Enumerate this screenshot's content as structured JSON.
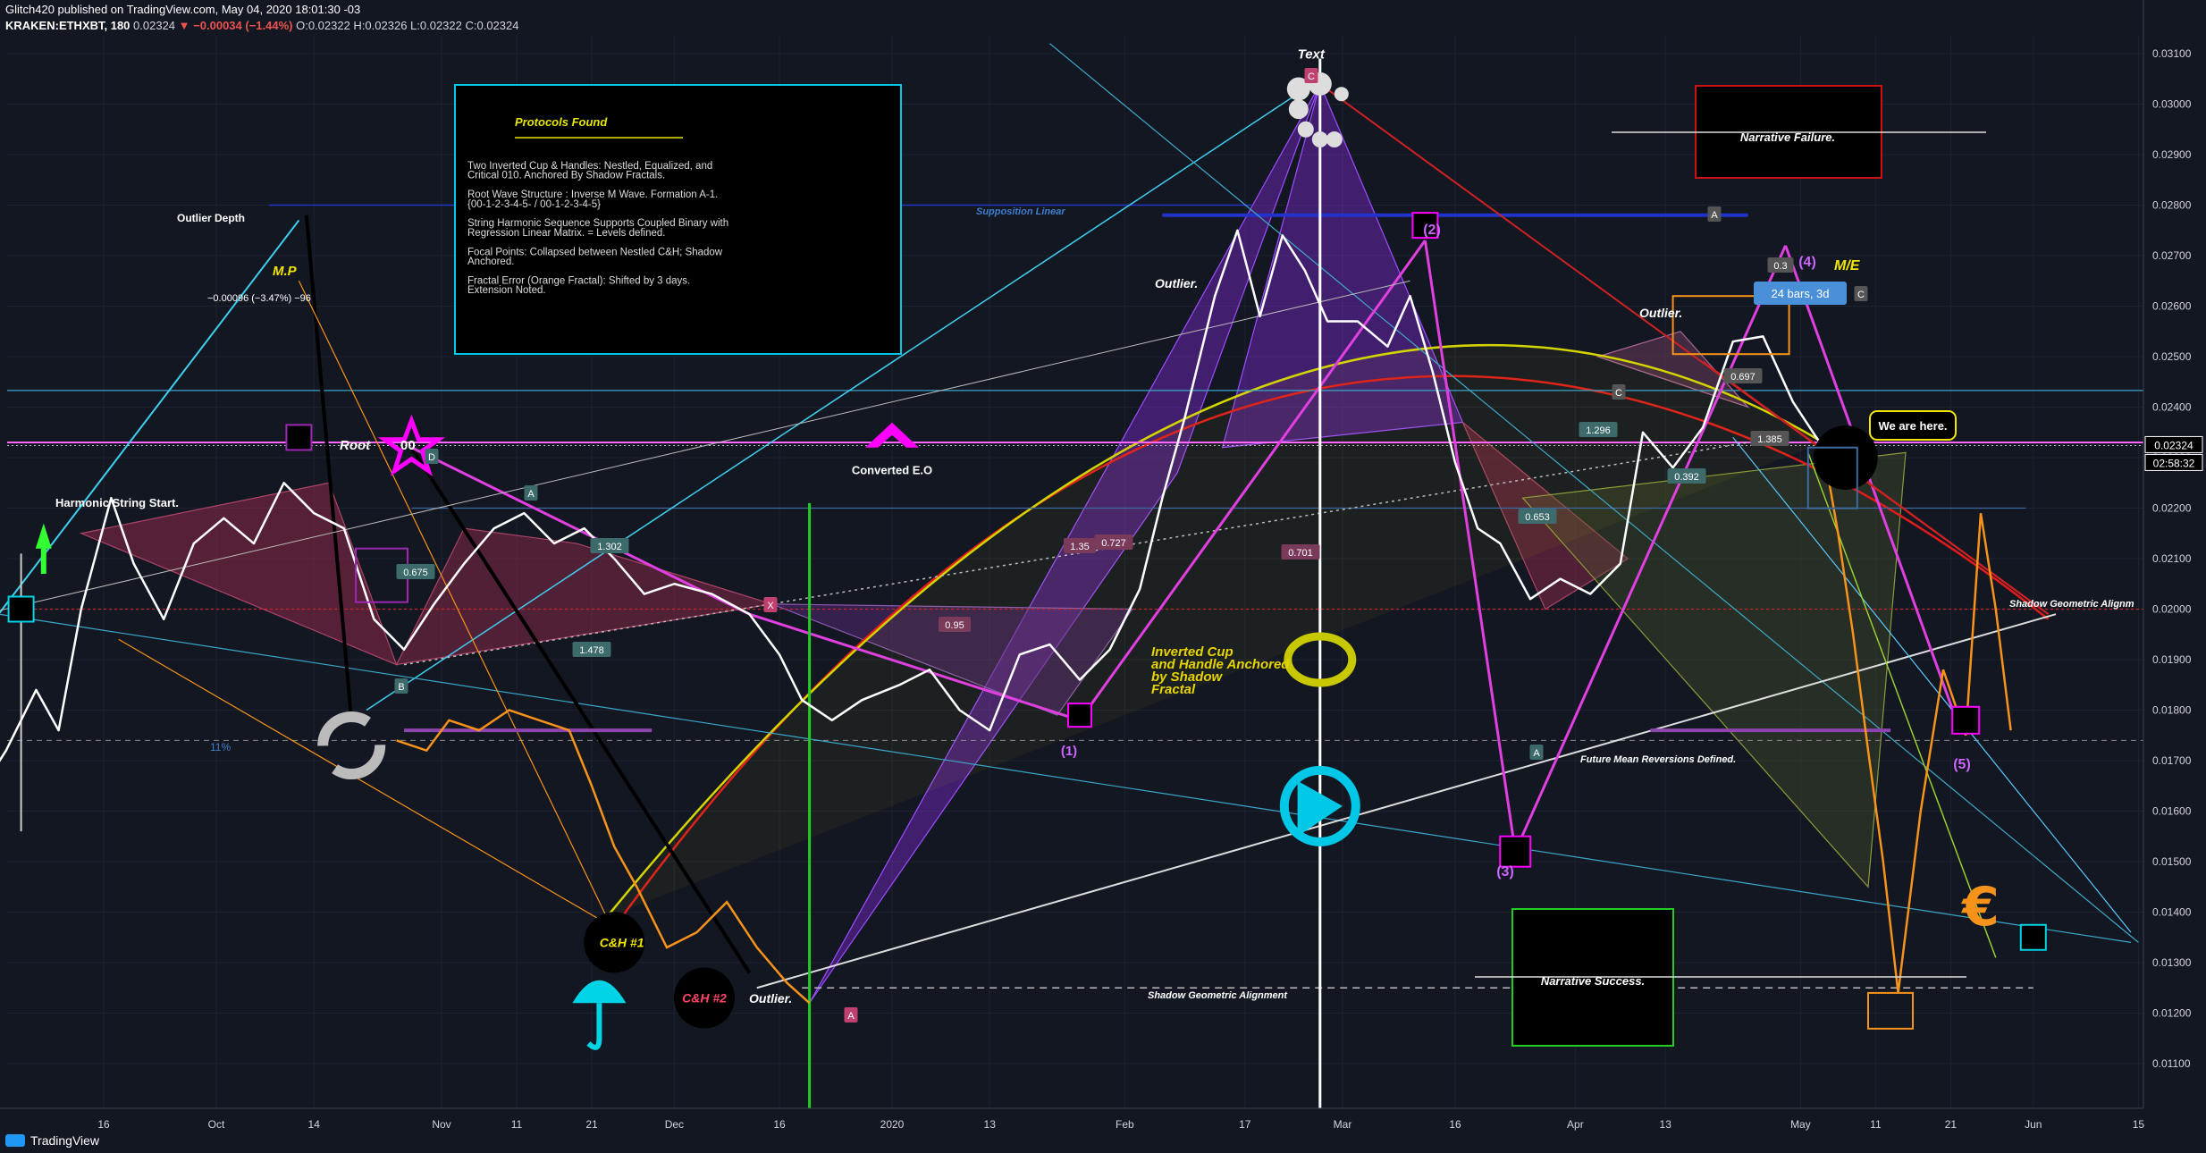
{
  "header": {
    "publisher_line": "Glitch420 published on TradingView.com, May 04, 2020 18:01:30 -03",
    "symbol": "KRAKEN:ETHXBT, 180",
    "last": "0.02324",
    "change": "−0.00034 (−1.44%)",
    "ohlc": "O:0.02322 H:0.02326 L:0.02322 C:0.02324"
  },
  "footer": {
    "brand": "TradingView"
  },
  "colors": {
    "background": "#131722",
    "price_line": "#ffffff",
    "fractal_line": "#f7931a",
    "arc_red": "#e01b1b",
    "arc_yellow": "#d4d400",
    "magenta": "#ff00ff",
    "cyan": "#00e5ff",
    "purple_fill": "#8a2be2"
  },
  "icons": [
    "sync-arrows-icon",
    "eye-icon",
    "play-button-icon",
    "umbrella-icon",
    "euro-icon",
    "star-icon",
    "up-arrow-icon"
  ],
  "chart_data": {
    "type": "line",
    "y_scale": {
      "min": 0.0105,
      "max": 0.0312
    },
    "y_ticks": [
      "0.03100",
      "0.03000",
      "0.02900",
      "0.02800",
      "0.02700",
      "0.02600",
      "0.02500",
      "0.02400",
      "0.02300",
      "0.02200",
      "0.02100",
      "0.02000",
      "0.01900",
      "0.01800",
      "0.01700",
      "0.01600",
      "0.01500",
      "0.01400",
      "0.01300",
      "0.01200",
      "0.01100"
    ],
    "y_tick_values": [
      0.031,
      0.03,
      0.029,
      0.028,
      0.027,
      0.026,
      0.025,
      0.024,
      0.023,
      0.022,
      0.021,
      0.02,
      0.019,
      0.018,
      0.017,
      0.016,
      0.015,
      0.014,
      0.013,
      0.012,
      0.011
    ],
    "x_ticks": [
      "16",
      "Oct",
      "14",
      "Nov",
      "11",
      "21",
      "Dec",
      "16",
      "2020",
      "13",
      "Feb",
      "17",
      "Mar",
      "16",
      "Apr",
      "13",
      "May",
      "11",
      "21",
      "Jun",
      "15"
    ],
    "x_tick_days": [
      -105,
      -90,
      -77,
      -60,
      -50,
      -40,
      -29,
      -15,
      0,
      13,
      31,
      47,
      60,
      75,
      91,
      103,
      121,
      131,
      141,
      152,
      166
    ],
    "x_axis": {
      "start": "2019-09-02",
      "end": "2020-06-18",
      "unit": "date"
    },
    "price_label": "0.02324",
    "countdown_label": "02:58:32",
    "series": [
      {
        "color": "#ffffff",
        "points": [
          [
            "2019-09-02",
            0.0165
          ],
          [
            "2019-09-05",
            0.0172
          ],
          [
            "2019-09-09",
            0.0184
          ],
          [
            "2019-09-12",
            0.0176
          ],
          [
            "2019-09-15",
            0.02
          ],
          [
            "2019-09-19",
            0.0222
          ],
          [
            "2019-09-22",
            0.0209
          ],
          [
            "2019-09-26",
            0.0198
          ],
          [
            "2019-09-30",
            0.0213
          ],
          [
            "2019-10-04",
            0.0218
          ],
          [
            "2019-10-08",
            0.0213
          ],
          [
            "2019-10-12",
            0.0225
          ],
          [
            "2019-10-16",
            0.0219
          ],
          [
            "2019-10-20",
            0.0216
          ],
          [
            "2019-10-24",
            0.0198
          ],
          [
            "2019-10-28",
            0.0192
          ],
          [
            "2019-11-01",
            0.0201
          ],
          [
            "2019-11-05",
            0.0209
          ],
          [
            "2019-11-09",
            0.0216
          ],
          [
            "2019-11-13",
            0.0219
          ],
          [
            "2019-11-17",
            0.0213
          ],
          [
            "2019-11-21",
            0.0216
          ],
          [
            "2019-11-25",
            0.021
          ],
          [
            "2019-11-29",
            0.0203
          ],
          [
            "2019-12-03",
            0.0205
          ],
          [
            "2019-12-08",
            0.0203
          ],
          [
            "2019-12-13",
            0.0199
          ],
          [
            "2019-12-17",
            0.0191
          ],
          [
            "2019-12-20",
            0.0182
          ],
          [
            "2019-12-24",
            0.0178
          ],
          [
            "2019-12-28",
            0.0182
          ],
          [
            "2020-01-02",
            0.0185
          ],
          [
            "2020-01-06",
            0.0188
          ],
          [
            "2020-01-10",
            0.018
          ],
          [
            "2020-01-14",
            0.0176
          ],
          [
            "2020-01-18",
            0.0191
          ],
          [
            "2020-01-22",
            0.0193
          ],
          [
            "2020-01-26",
            0.0186
          ],
          [
            "2020-01-30",
            0.0192
          ],
          [
            "2020-02-03",
            0.0204
          ],
          [
            "2020-02-06",
            0.0222
          ],
          [
            "2020-02-09",
            0.0238
          ],
          [
            "2020-02-13",
            0.0262
          ],
          [
            "2020-02-16",
            0.0275
          ],
          [
            "2020-02-19",
            0.0258
          ],
          [
            "2020-02-22",
            0.0274
          ],
          [
            "2020-02-25",
            0.0267
          ],
          [
            "2020-02-28",
            0.0257
          ],
          [
            "2020-03-03",
            0.0257
          ],
          [
            "2020-03-07",
            0.0252
          ],
          [
            "2020-03-10",
            0.0262
          ],
          [
            "2020-03-13",
            0.0247
          ],
          [
            "2020-03-16",
            0.0229
          ],
          [
            "2020-03-19",
            0.0216
          ],
          [
            "2020-03-22",
            0.0213
          ],
          [
            "2020-03-26",
            0.0202
          ],
          [
            "2020-03-30",
            0.0206
          ],
          [
            "2020-04-03",
            0.0203
          ],
          [
            "2020-04-07",
            0.0209
          ],
          [
            "2020-04-10",
            0.0235
          ],
          [
            "2020-04-14",
            0.0228
          ],
          [
            "2020-04-18",
            0.0236
          ],
          [
            "2020-04-22",
            0.0253
          ],
          [
            "2020-04-26",
            0.0254
          ],
          [
            "2020-04-30",
            0.0241
          ],
          [
            "2020-05-04",
            0.0232
          ]
        ]
      },
      {
        "color": "#f7931a",
        "points": [
          [
            "2019-10-27",
            0.0174
          ],
          [
            "2019-10-31",
            0.0172
          ],
          [
            "2019-11-03",
            0.0178
          ],
          [
            "2019-11-07",
            0.0176
          ],
          [
            "2019-11-11",
            0.018
          ],
          [
            "2019-11-15",
            0.0178
          ],
          [
            "2019-11-19",
            0.0176
          ],
          [
            "2019-11-22",
            0.0165
          ],
          [
            "2019-11-25",
            0.0153
          ],
          [
            "2019-11-28",
            0.0145
          ],
          [
            "2019-12-02",
            0.0133
          ],
          [
            "2019-12-06",
            0.0136
          ],
          [
            "2019-12-10",
            0.0142
          ],
          [
            "2019-12-14",
            0.0133
          ],
          [
            "2019-12-18",
            0.0126
          ],
          [
            "2019-12-21",
            0.0122
          ],
          [
            "2020-05-04",
            0.0232
          ],
          [
            "2020-05-06",
            0.0215
          ],
          [
            "2020-05-08",
            0.0195
          ],
          [
            "2020-05-10",
            0.0172
          ],
          [
            "2020-05-12",
            0.015
          ],
          [
            "2020-05-14",
            0.0124
          ],
          [
            "2020-05-17",
            0.016
          ],
          [
            "2020-05-20",
            0.0188
          ],
          [
            "2020-05-23",
            0.0175
          ],
          [
            "2020-05-25",
            0.0219
          ],
          [
            "2020-05-27",
            0.02
          ],
          [
            "2020-05-29",
            0.0176
          ]
        ]
      }
    ],
    "annotations": [
      {
        "key": "text_title",
        "label": "Text"
      },
      {
        "key": "outlier_depth",
        "label": "Outlier Depth"
      },
      {
        "key": "outlier_measure",
        "label": "−0.00096 (−3.47%) −96"
      },
      {
        "key": "mp",
        "label": "M.P"
      },
      {
        "key": "harmonic",
        "label": "Harmonic String Start."
      },
      {
        "key": "root",
        "label": "Root"
      },
      {
        "key": "root_00",
        "label": "00"
      },
      {
        "key": "converted",
        "label": "Converted E.O"
      },
      {
        "key": "supposition",
        "label": "Supposition Linear"
      },
      {
        "key": "outlier_a",
        "label": "Outlier."
      },
      {
        "key": "outlier_b",
        "label": "Outlier."
      },
      {
        "key": "outlier_c",
        "label": "Outlier."
      },
      {
        "key": "inverted",
        "label": "Inverted Cup and Handle Anchored by Shadow Fractal"
      },
      {
        "key": "shadow_geo_bottom",
        "label": "Shadow Geometric Alignment"
      },
      {
        "key": "shadow_geo_right",
        "label": "Shadow Geometric Alignm"
      },
      {
        "key": "future_mean",
        "label": "Future Mean Reversions Defined."
      },
      {
        "key": "me",
        "label": "M/E"
      },
      {
        "key": "we_are_here",
        "label": "We are here."
      },
      {
        "key": "bars",
        "label": "24 bars, 3d"
      },
      {
        "key": "ch1",
        "label": "C&H #1"
      },
      {
        "key": "ch2",
        "label": "C&H #2"
      },
      {
        "key": "w1",
        "label": "(1)"
      },
      {
        "key": "w2",
        "label": "(2)"
      },
      {
        "key": "w3",
        "label": "(3)"
      },
      {
        "key": "w4",
        "label": "(4)"
      },
      {
        "key": "w5",
        "label": "(5)"
      },
      {
        "key": "pct_11",
        "label": "11%"
      },
      {
        "key": "ratio_0675",
        "label": "0.675"
      },
      {
        "key": "ratio_1478",
        "label": "1.478"
      },
      {
        "key": "ratio_1302",
        "label": "1.302"
      },
      {
        "key": "ratio_095",
        "label": "0.95"
      },
      {
        "key": "ratio_135",
        "label": "1.35"
      },
      {
        "key": "ratio_0727",
        "label": "0.727"
      },
      {
        "key": "ratio_0701",
        "label": "0.701"
      },
      {
        "key": "ratio_0653",
        "label": "0.653"
      },
      {
        "key": "ratio_1296",
        "label": "1.296"
      },
      {
        "key": "ratio_1385",
        "label": "1.385"
      },
      {
        "key": "ratio_0392",
        "label": "0.392"
      },
      {
        "key": "ratio_0697",
        "label": "0.697"
      },
      {
        "key": "ratio_03",
        "label": "0.3"
      },
      {
        "key": "pt_x",
        "label": "X"
      },
      {
        "key": "pt_a1",
        "label": "A"
      },
      {
        "key": "pt_b1",
        "label": "B"
      },
      {
        "key": "pt_d1",
        "label": "D"
      },
      {
        "key": "pt_c1",
        "label": "C"
      },
      {
        "key": "pt_a2",
        "label": "A"
      },
      {
        "key": "pt_c2",
        "label": "C"
      },
      {
        "key": "pt_a3",
        "label": "A"
      },
      {
        "key": "pt_a4",
        "label": "A"
      },
      {
        "key": "pt_c3",
        "label": "C"
      }
    ],
    "boxes": {
      "protocols": {
        "title": "Protocols Found",
        "lines": [
          "Two Inverted Cup & Handles: Nestled, Equalized, and",
          "Critical 010. Anchored By Shadow Fractals.",
          "",
          "Root Wave Structure : Inverse M Wave. Formation A-1.",
          "{00-1-2-3-4-5- / 00-1-2-3-4-5}",
          "",
          "String Harmonic Sequence Supports Coupled Binary with",
          "Regression Linear Matrix. = Levels defined.",
          "",
          "Focal Points: Collapsed between Nestled C&H; Shadow",
          "Anchored.",
          "",
          "Fractal Error (Orange Fractal): Shifted by 3 days.",
          "Extension Noted."
        ]
      },
      "narrative_failure": "Narrative Failure.",
      "narrative_success": "Narrative Success."
    }
  }
}
